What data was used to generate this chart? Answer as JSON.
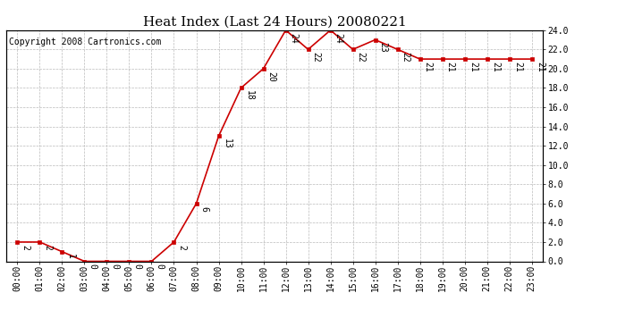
{
  "title": "Heat Index (Last 24 Hours) 20080221",
  "copyright": "Copyright 2008 Cartronics.com",
  "x_labels": [
    "00:00",
    "01:00",
    "02:00",
    "03:00",
    "04:00",
    "05:00",
    "06:00",
    "07:00",
    "08:00",
    "09:00",
    "10:00",
    "11:00",
    "12:00",
    "13:00",
    "14:00",
    "15:00",
    "16:00",
    "17:00",
    "18:00",
    "19:00",
    "20:00",
    "21:00",
    "22:00",
    "23:00"
  ],
  "y_values": [
    2,
    2,
    1,
    0,
    0,
    0,
    0,
    2,
    6,
    13,
    18,
    20,
    24,
    22,
    24,
    22,
    23,
    22,
    21,
    21,
    21,
    21,
    21,
    21
  ],
  "y_labels_right": [
    "0.0",
    "2.0",
    "4.0",
    "6.0",
    "8.0",
    "10.0",
    "12.0",
    "14.0",
    "16.0",
    "18.0",
    "20.0",
    "22.0",
    "24.0"
  ],
  "y_ticks_right": [
    0.0,
    2.0,
    4.0,
    6.0,
    8.0,
    10.0,
    12.0,
    14.0,
    16.0,
    18.0,
    20.0,
    22.0,
    24.0
  ],
  "y_min": 0.0,
  "y_max": 24.0,
  "line_color": "#cc0000",
  "marker_color": "#cc0000",
  "marker_style": "s",
  "marker_size": 3,
  "grid_color": "#bbbbbb",
  "background_color": "#ffffff",
  "title_fontsize": 11,
  "copyright_fontsize": 7,
  "tick_fontsize": 7,
  "annotation_fontsize": 7
}
